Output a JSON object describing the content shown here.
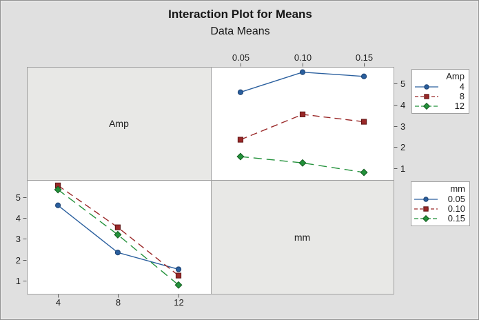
{
  "figure": {
    "background": "#e0e0e0",
    "panel_gray": "#e8e8e6",
    "panel_white": "#ffffff",
    "border_color": "#a0a0a0",
    "tick_color": "#5a5a5a",
    "text_color": "#1e1e1e"
  },
  "title": "Interaction Plot for Means",
  "subtitle": "Data Means",
  "panel_labels": {
    "top_left": "Amp",
    "bottom_right": "mm"
  },
  "legends": [
    {
      "title": "Amp",
      "entries": [
        {
          "label": "4",
          "color": "#2a5f9e",
          "edge": "#1b3f6e",
          "marker": "circle",
          "dash": ""
        },
        {
          "label": "8",
          "color": "#9a2828",
          "edge": "#5e1515",
          "marker": "square",
          "dash": "5,3"
        },
        {
          "label": "12",
          "color": "#22913a",
          "edge": "#135c20",
          "marker": "diamond",
          "dash": "6,3"
        }
      ]
    },
    {
      "title": "mm",
      "entries": [
        {
          "label": "0.05",
          "color": "#2a5f9e",
          "edge": "#1b3f6e",
          "marker": "circle",
          "dash": ""
        },
        {
          "label": "0.10",
          "color": "#9a2828",
          "edge": "#5e1515",
          "marker": "square",
          "dash": "5,3"
        },
        {
          "label": "0.15",
          "color": "#22913a",
          "edge": "#135c20",
          "marker": "diamond",
          "dash": "6,3"
        }
      ]
    }
  ],
  "chart_data": [
    {
      "type": "line",
      "panel": "top_right",
      "x_factor": "mm",
      "series_factor": "Amp",
      "categories": [
        "0.05",
        "0.10",
        "0.15"
      ],
      "series": [
        {
          "name": "Amp 4",
          "color": "#2a5f9e",
          "edge": "#1b3f6e",
          "marker": "circle",
          "dash": "",
          "values": [
            4.6,
            5.55,
            5.35
          ]
        },
        {
          "name": "Amp 8",
          "color": "#9a2828",
          "edge": "#5e1515",
          "marker": "square",
          "dash": "10,6",
          "values": [
            2.35,
            3.55,
            3.2
          ]
        },
        {
          "name": "Amp 12",
          "color": "#22913a",
          "edge": "#135c20",
          "marker": "diamond",
          "dash": "12,7",
          "values": [
            1.55,
            1.25,
            0.8
          ]
        }
      ],
      "yticks": [
        1,
        2,
        3,
        4,
        5
      ],
      "ylim": [
        0.44,
        5.8
      ],
      "x_axis_side": "top",
      "y_axis_side": "right",
      "grid": false
    },
    {
      "type": "line",
      "panel": "bottom_left",
      "x_factor": "Amp",
      "series_factor": "mm",
      "categories": [
        "4",
        "8",
        "12"
      ],
      "series": [
        {
          "name": "mm 0.05",
          "color": "#2a5f9e",
          "edge": "#1b3f6e",
          "marker": "circle",
          "dash": "",
          "values": [
            4.6,
            2.35,
            1.55
          ]
        },
        {
          "name": "mm 0.10",
          "color": "#9a2828",
          "edge": "#5e1515",
          "marker": "square",
          "dash": "10,6",
          "values": [
            5.55,
            3.55,
            1.25
          ]
        },
        {
          "name": "mm 0.15",
          "color": "#22913a",
          "edge": "#135c20",
          "marker": "diamond",
          "dash": "12,7",
          "values": [
            5.35,
            3.2,
            0.8
          ]
        }
      ],
      "yticks": [
        1,
        2,
        3,
        4,
        5
      ],
      "ylim": [
        0.38,
        5.81
      ],
      "x_axis_side": "bottom",
      "y_axis_side": "left",
      "grid": false
    }
  ]
}
